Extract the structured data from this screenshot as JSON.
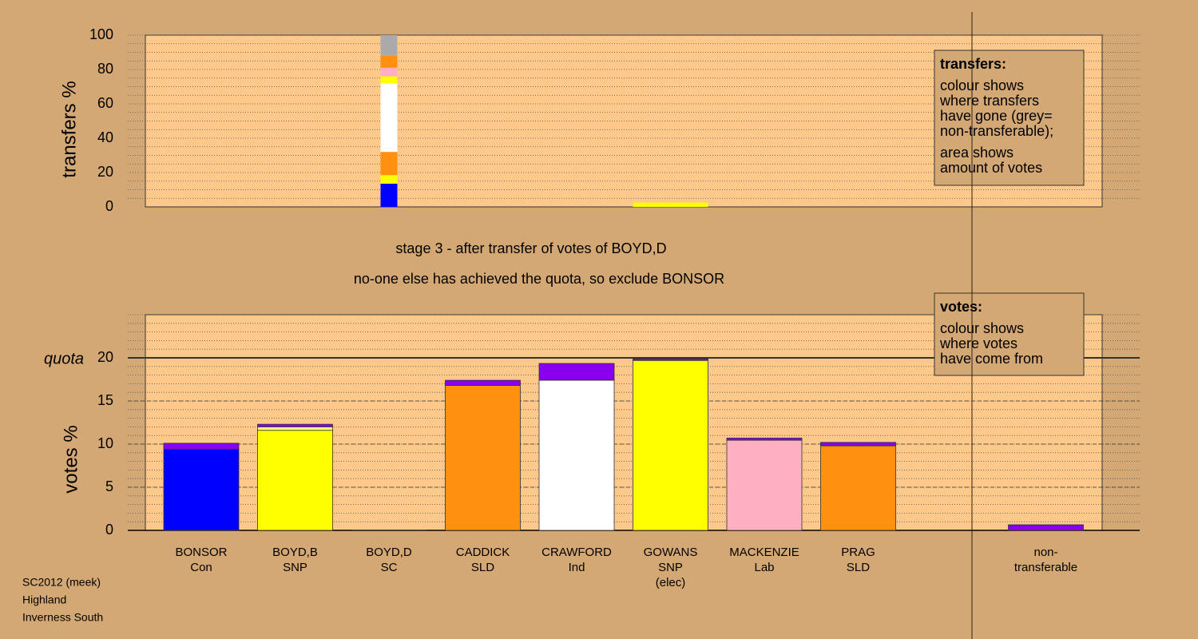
{
  "chart_data": [
    {
      "type": "stacked-bar",
      "ylabel": "transfers %",
      "ylim": [
        0,
        100
      ],
      "yticks": [
        0,
        20,
        40,
        60,
        80,
        100
      ],
      "minor_grid_step": 5,
      "stacks": [
        null,
        null,
        [
          {
            "color": "#0000ff",
            "value": 13.5
          },
          {
            "color": "#ffff00",
            "value": 5
          },
          {
            "color": "#ff9010",
            "value": 13.5
          },
          {
            "color": "#ffffff",
            "value": 40
          },
          {
            "color": "#ffff00",
            "value": 4
          },
          {
            "color": "#ffb0c0",
            "value": 5
          },
          {
            "color": "#ff9010",
            "value": 7
          },
          {
            "color": "#aaaaaa",
            "value": 12
          }
        ],
        null,
        null,
        [
          {
            "color": "#ffff00",
            "value": 2.5
          }
        ],
        null,
        null,
        null,
        null
      ],
      "legend_box": {
        "heading": "transfers:",
        "lines": [
          "colour shows",
          "where transfers",
          "have gone (grey=",
          "non-transferable);",
          "area shows",
          "amount of votes"
        ]
      }
    },
    {
      "type": "stacked-bar",
      "title": "stage 3 - after transfer of votes of BOYD,D",
      "subtitle": "no-one else has achieved the quota, so exclude BONSOR",
      "ylabel": "votes %",
      "ylim": [
        0,
        25
      ],
      "yticks": [
        0,
        5,
        10,
        15,
        20
      ],
      "minor_grid_step": 1,
      "quota": {
        "label": "quota",
        "value": 20
      },
      "categories": [
        [
          "BONSOR",
          "Con"
        ],
        [
          "BOYD,B",
          "SNP"
        ],
        [
          "BOYD,D",
          "SC"
        ],
        [
          "CADDICK",
          "SLD"
        ],
        [
          "CRAWFORD",
          "Ind"
        ],
        [
          "GOWANS",
          "SNP",
          "(elec)"
        ],
        [
          "MACKENZIE",
          "Lab"
        ],
        [
          "PRAG",
          "SLD"
        ],
        null,
        [
          "non-",
          "transferable"
        ]
      ],
      "stacks": [
        [
          {
            "color": "#0000ff",
            "value": 9.4
          },
          {
            "color": "#8800ee",
            "value": 0.7
          }
        ],
        [
          {
            "color": "#ffff00",
            "value": 11.6
          },
          {
            "color": "#ffff90",
            "value": 0.4
          },
          {
            "color": "#8800ee",
            "value": 0.3
          }
        ],
        [
          {
            "color": "#ffff00",
            "value": 0
          }
        ],
        [
          {
            "color": "#ff9010",
            "value": 16.8
          },
          {
            "color": "#8800ee",
            "value": 0.6
          }
        ],
        [
          {
            "color": "#ffffff",
            "value": 17.4
          },
          {
            "color": "#8800ee",
            "value": 1.95
          }
        ],
        [
          {
            "color": "#ffff00",
            "value": 19.7
          },
          {
            "color": "#8800ee",
            "value": 0.2
          }
        ],
        [
          {
            "color": "#ffb0c0",
            "value": 10.45
          },
          {
            "color": "#8800ee",
            "value": 0.25
          }
        ],
        [
          {
            "color": "#ff9010",
            "value": 9.8
          },
          {
            "color": "#8800ee",
            "value": 0.4
          }
        ],
        null,
        [
          {
            "color": "#8800ee",
            "value": 0.65
          }
        ]
      ],
      "legend_box": {
        "heading": "votes:",
        "lines": [
          "colour shows",
          "where votes",
          "have come from"
        ]
      }
    }
  ],
  "footer": [
    "SC2012 (meek)",
    "Highland",
    "Inverness South"
  ]
}
